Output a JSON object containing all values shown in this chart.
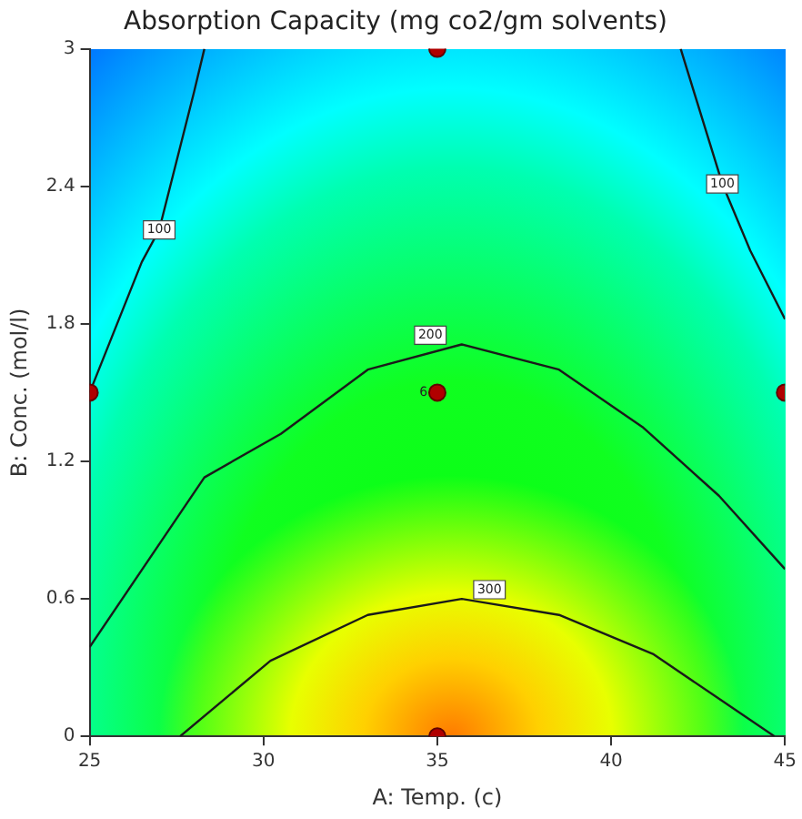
{
  "chart_data": {
    "type": "line",
    "title": "Absorption Capacity (mg co2/gm solvents)",
    "xlabel": "A: Temp. (c)",
    "ylabel": "B: Conc. (mol/l)",
    "xlim": [
      25,
      45
    ],
    "xticks": [
      25,
      30,
      35,
      40,
      45
    ],
    "ylim": [
      0,
      3
    ],
    "yticks": [
      0,
      0.6,
      1.2,
      1.8,
      2.4,
      3
    ],
    "grid": false,
    "legend": false,
    "series": [
      {
        "color": "#1a1a1a",
        "marker": "none",
        "x": [
          25,
          26.5,
          27,
          28,
          28.3
        ],
        "values": [
          1.5,
          2.07,
          2.21,
          2.81,
          3
        ]
      },
      {
        "color": "#1a1a1a",
        "marker": "none",
        "x": [
          42,
          43.2,
          44,
          45
        ],
        "values": [
          3,
          2.41,
          2.12,
          1.82
        ]
      },
      {
        "color": "#1a1a1a",
        "marker": "none",
        "x": [
          25,
          28.3,
          30.5,
          33,
          35.7,
          38.5,
          40.9,
          43.1,
          45
        ],
        "values": [
          0.39,
          1.13,
          1.32,
          1.6,
          1.71,
          1.6,
          1.35,
          1.05,
          0.73
        ]
      },
      {
        "color": "#1a1a1a",
        "marker": "none",
        "x": [
          27.6,
          30.2,
          33,
          35.7,
          38.5,
          41.2,
          44.7
        ],
        "values": [
          0,
          0.33,
          0.53,
          0.6,
          0.53,
          0.36,
          0
        ]
      },
      {
        "type": "scatter",
        "color": "#b00000",
        "marker": "circle",
        "x": [
          35,
          25,
          35,
          45,
          35
        ],
        "values": [
          3,
          1.5,
          1.5,
          1.5,
          0
        ]
      }
    ],
    "annotations": [
      {
        "text": "100",
        "x": 27,
        "y": 2.21
      },
      {
        "text": "100",
        "x": 43.2,
        "y": 2.41
      },
      {
        "text": "200",
        "x": 34.8,
        "y": 1.75
      },
      {
        "text": "300",
        "x": 36.5,
        "y": 0.64
      },
      {
        "text": "6",
        "x": 34.6,
        "y": 1.5
      }
    ]
  }
}
